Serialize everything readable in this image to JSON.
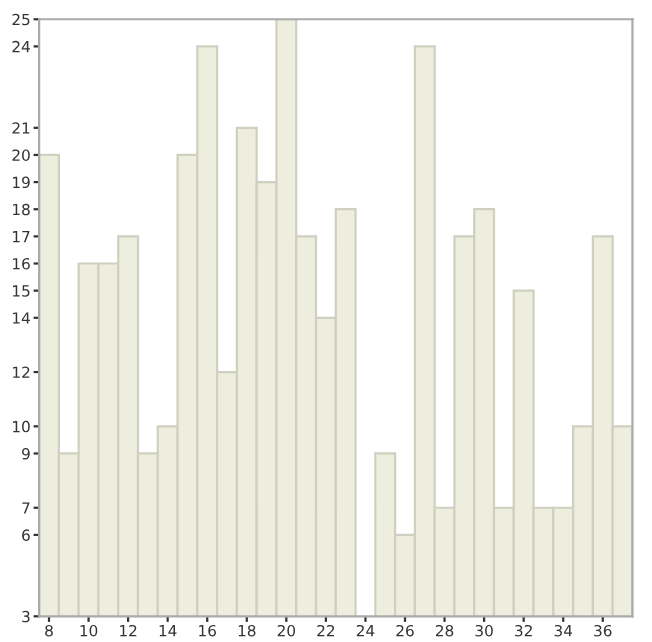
{
  "chart_data": {
    "type": "bar",
    "x": [
      8,
      9,
      10,
      11,
      12,
      13,
      14,
      15,
      16,
      17,
      18,
      19,
      20,
      21,
      22,
      23,
      24,
      25,
      26,
      27,
      28,
      29,
      30,
      31,
      32,
      33,
      34,
      35,
      36,
      37
    ],
    "values": [
      20,
      9,
      16,
      16,
      17,
      9,
      10,
      20,
      24,
      12,
      21,
      19,
      25,
      17,
      14,
      18,
      null,
      9,
      6,
      24,
      7,
      17,
      18,
      7,
      15,
      7,
      7,
      10,
      17,
      10
    ],
    "color": "#eeeedf",
    "xlim": [
      7.5,
      37.5
    ],
    "xticks": [
      8,
      10,
      12,
      14,
      16,
      18,
      20,
      22,
      24,
      26,
      28,
      30,
      32,
      34,
      36
    ],
    "ylim": [
      3,
      25
    ],
    "yticks": [
      3,
      6,
      7,
      9,
      10,
      12,
      14,
      15,
      16,
      17,
      18,
      19,
      20,
      21,
      24,
      25
    ],
    "grid": false,
    "legend": false
  }
}
